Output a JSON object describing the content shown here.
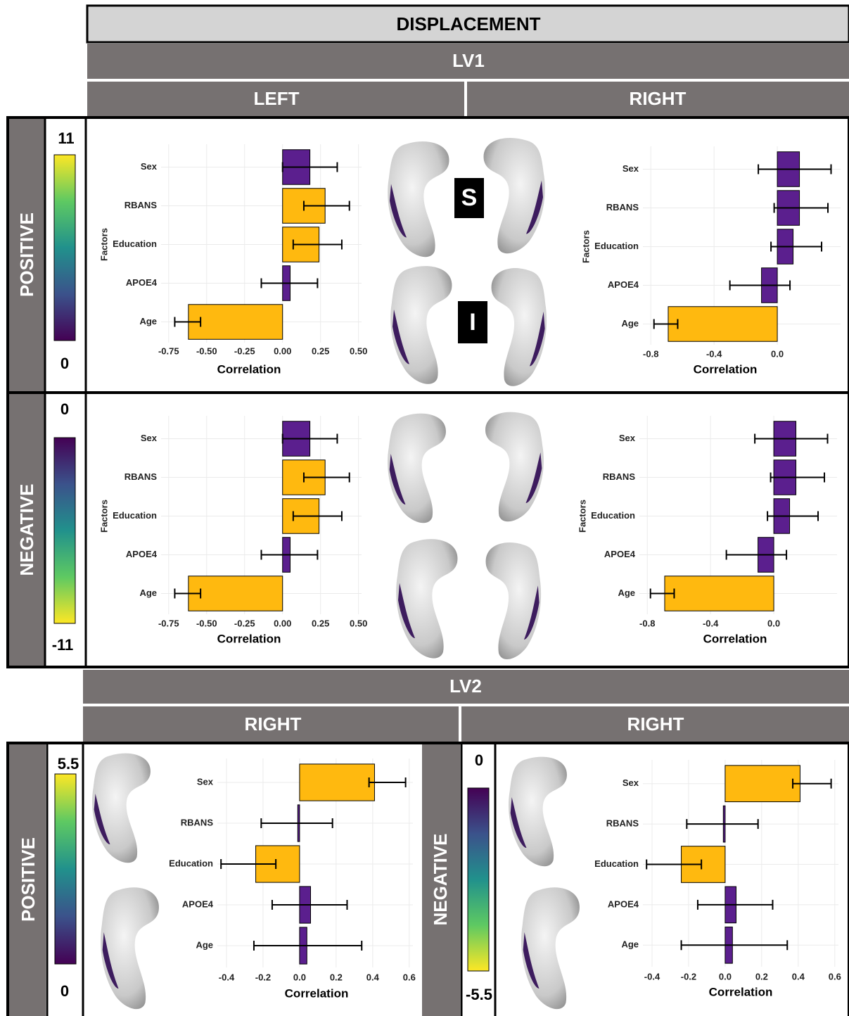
{
  "header": {
    "title": "DISPLACEMENT",
    "lv1": "LV1",
    "lv1_left": "LEFT",
    "lv1_right": "RIGHT",
    "lv2": "LV2",
    "lv2_left": "RIGHT",
    "lv2_right": "RIGHT"
  },
  "rows": {
    "positive": "POSITIVE",
    "negative": "NEGATIVE",
    "lv2_positive": "POSITIVE",
    "lv2_negative": "NEGATIVE"
  },
  "colorbars": [
    {
      "top": 11,
      "bottom": 0
    },
    {
      "top": 0,
      "bottom": -11
    },
    {
      "top": 5.5,
      "bottom": 0
    },
    {
      "top": 0,
      "bottom": -5.5
    }
  ],
  "view_labels": [
    "S",
    "I"
  ],
  "chart_data": [
    {
      "type": "bar",
      "orientation": "horizontal",
      "xlabel": "Correlation",
      "ylabel": "Factors",
      "categories": [
        "Sex",
        "RBANS",
        "Education",
        "APOE4",
        "Age"
      ],
      "values": [
        0.18,
        0.28,
        0.24,
        0.05,
        -0.62
      ],
      "ci_low": [
        0.0,
        0.14,
        0.07,
        -0.14,
        -0.71
      ],
      "ci_high": [
        0.36,
        0.44,
        0.39,
        0.23,
        -0.54
      ],
      "colors": [
        "#5b1f8e",
        "#ffb90f",
        "#ffb90f",
        "#5b1f8e",
        "#ffb90f"
      ],
      "xlim": [
        -0.8,
        0.52
      ],
      "xticks": [
        -0.75,
        {
          "value": -0.5,
          "label": "-0.50"
        },
        -0.25,
        {
          "value": 0,
          "label": "0.00"
        },
        0.25,
        {
          "value": 0.5,
          "label": "0.50"
        }
      ],
      "grid": true
    },
    {
      "type": "bar",
      "orientation": "horizontal",
      "xlabel": "Correlation",
      "ylabel": "Factors",
      "categories": [
        "Sex",
        "RBANS",
        "Education",
        "APOE4",
        "Age"
      ],
      "values": [
        0.14,
        0.14,
        0.1,
        -0.1,
        -0.69
      ],
      "ci_low": [
        -0.12,
        -0.02,
        -0.04,
        -0.3,
        -0.78
      ],
      "ci_high": [
        0.34,
        0.32,
        0.28,
        0.08,
        -0.63
      ],
      "colors": [
        "#5b1f8e",
        "#5b1f8e",
        "#5b1f8e",
        "#5b1f8e",
        "#ffb90f"
      ],
      "xlim": [
        -0.85,
        0.4
      ],
      "xticks": [
        -0.8,
        -0.4,
        {
          "value": 0,
          "label": "0.0"
        }
      ],
      "grid": true
    },
    {
      "type": "bar",
      "orientation": "horizontal",
      "xlabel": "Correlation",
      "ylabel": "Factors",
      "categories": [
        "Sex",
        "RBANS",
        "Education",
        "APOE4",
        "Age"
      ],
      "values": [
        0.18,
        0.28,
        0.24,
        0.05,
        -0.62
      ],
      "ci_low": [
        0.0,
        0.14,
        0.07,
        -0.14,
        -0.71
      ],
      "ci_high": [
        0.36,
        0.44,
        0.39,
        0.23,
        -0.54
      ],
      "colors": [
        "#5b1f8e",
        "#ffb90f",
        "#ffb90f",
        "#5b1f8e",
        "#ffb90f"
      ],
      "xlim": [
        -0.8,
        0.52
      ],
      "xticks": [
        -0.75,
        {
          "value": -0.5,
          "label": "-0.50"
        },
        -0.25,
        {
          "value": 0,
          "label": "0.00"
        },
        0.25,
        {
          "value": 0.5,
          "label": "0.50"
        }
      ],
      "grid": true
    },
    {
      "type": "bar",
      "orientation": "horizontal",
      "xlabel": "Correlation",
      "ylabel": "Factors",
      "categories": [
        "Sex",
        "RBANS",
        "Education",
        "APOE4",
        "Age"
      ],
      "values": [
        0.14,
        0.14,
        0.1,
        -0.1,
        -0.69
      ],
      "ci_low": [
        -0.12,
        -0.02,
        -0.04,
        -0.3,
        -0.78
      ],
      "ci_high": [
        0.34,
        0.32,
        0.28,
        0.08,
        -0.63
      ],
      "colors": [
        "#5b1f8e",
        "#5b1f8e",
        "#5b1f8e",
        "#5b1f8e",
        "#ffb90f"
      ],
      "xlim": [
        -0.85,
        0.4
      ],
      "xticks": [
        -0.8,
        -0.4,
        {
          "value": 0,
          "label": "0.0"
        }
      ],
      "grid": true
    },
    {
      "type": "bar",
      "orientation": "horizontal",
      "xlabel": "Correlation",
      "categories": [
        "Sex",
        "RBANS",
        "Education",
        "APOE4",
        "Age"
      ],
      "values": [
        0.41,
        -0.01,
        -0.24,
        0.06,
        0.04
      ],
      "ci_low": [
        0.38,
        -0.21,
        -0.43,
        -0.15,
        -0.25
      ],
      "ci_high": [
        0.58,
        0.18,
        -0.13,
        0.26,
        0.34
      ],
      "colors": [
        "#ffb90f",
        "#5b1f8e",
        "#ffb90f",
        "#5b1f8e",
        "#5b1f8e"
      ],
      "xlim": [
        -0.45,
        0.62
      ],
      "xticks": [
        -0.4,
        -0.2,
        {
          "value": 0,
          "label": "0.0"
        },
        0.2,
        0.4,
        0.6
      ],
      "grid": true
    },
    {
      "type": "bar",
      "orientation": "horizontal",
      "xlabel": "Correlation",
      "categories": [
        "Sex",
        "RBANS",
        "Education",
        "APOE4",
        "Age"
      ],
      "values": [
        0.41,
        -0.01,
        -0.24,
        0.06,
        0.04
      ],
      "ci_low": [
        0.37,
        -0.21,
        -0.43,
        -0.15,
        -0.24
      ],
      "ci_high": [
        0.58,
        0.18,
        -0.13,
        0.26,
        0.34
      ],
      "colors": [
        "#ffb90f",
        "#5b1f8e",
        "#ffb90f",
        "#5b1f8e",
        "#5b1f8e"
      ],
      "xlim": [
        -0.45,
        0.62
      ],
      "xticks": [
        -0.4,
        -0.2,
        {
          "value": 0,
          "label": "0.0"
        },
        0.2,
        0.4,
        0.6
      ],
      "grid": true
    }
  ]
}
